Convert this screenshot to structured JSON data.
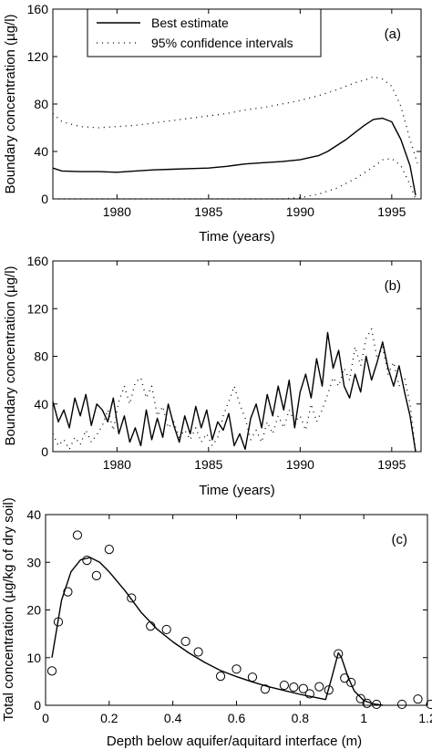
{
  "chart_data": [
    {
      "type": "line",
      "panel_tag": "(a)",
      "xlabel": "Time (years)",
      "ylabel": "Boundary concentration (µg/l)",
      "xlim": [
        1976.5,
        1996.6
      ],
      "ylim": [
        0,
        160
      ],
      "xticks": [
        1980,
        1985,
        1990,
        1995
      ],
      "yticks": [
        0,
        40,
        80,
        120,
        160
      ],
      "grid": false,
      "legend": {
        "placement": "top-left"
      },
      "series": [
        {
          "name": "Best estimate",
          "style": "solid",
          "x": [
            1976.5,
            1977,
            1978,
            1979,
            1980,
            1981,
            1982,
            1983,
            1984,
            1985,
            1986,
            1987,
            1988,
            1989,
            1990,
            1991,
            1991.5,
            1992,
            1992.5,
            1993,
            1993.5,
            1994,
            1994.5,
            1995,
            1995.5,
            1996,
            1996.3
          ],
          "y": [
            26,
            23.5,
            23,
            23,
            22.5,
            23.5,
            24.5,
            25,
            25.5,
            26,
            27.5,
            29.5,
            30.5,
            31.5,
            33,
            36.5,
            40,
            45,
            50,
            56,
            62,
            67,
            68,
            65,
            50,
            28,
            3
          ]
        },
        {
          "name": "95% confidence intervals",
          "style": "dotted",
          "x": [
            1976.5,
            1977,
            1978,
            1979,
            1980,
            1981,
            1982,
            1983,
            1984,
            1985,
            1986,
            1987,
            1988,
            1989,
            1990,
            1991,
            1992,
            1993,
            1993.5,
            1994,
            1994.5,
            1995,
            1995.5,
            1996,
            1996.4
          ],
          "y": [
            72,
            65,
            61,
            60,
            61,
            62,
            64,
            66,
            68,
            70,
            72,
            75,
            77,
            80,
            83,
            87,
            92,
            98,
            100,
            103,
            101,
            95,
            78,
            50,
            30
          ]
        },
        {
          "name": "",
          "style": "dotted",
          "x": [
            1976.5,
            1977,
            1980,
            1984,
            1987,
            1989,
            1990,
            1991,
            1992,
            1993,
            1994,
            1994.5,
            1995,
            1995.5,
            1996,
            1996.3
          ],
          "y": [
            0,
            0,
            0,
            0,
            0,
            0,
            1,
            4,
            9,
            17,
            27,
            33,
            34,
            28,
            12,
            0
          ]
        }
      ]
    },
    {
      "type": "line",
      "panel_tag": "(b)",
      "xlabel": "Time (years)",
      "ylabel": "Boundary concentration (µg/l)",
      "xlim": [
        1976.5,
        1996.6
      ],
      "ylim": [
        0,
        160
      ],
      "xticks": [
        1980,
        1985,
        1990,
        1995
      ],
      "yticks": [
        0,
        40,
        80,
        120,
        160
      ],
      "grid": false,
      "series": [
        {
          "name": "",
          "style": "solid",
          "x": [
            1976.5,
            1976.8,
            1977.1,
            1977.4,
            1977.7,
            1978,
            1978.3,
            1978.6,
            1978.9,
            1979.2,
            1979.5,
            1979.8,
            1980.1,
            1980.4,
            1980.7,
            1981,
            1981.3,
            1981.6,
            1981.9,
            1982.2,
            1982.5,
            1982.8,
            1983.1,
            1983.4,
            1983.7,
            1984,
            1984.3,
            1984.6,
            1984.9,
            1985.2,
            1985.5,
            1985.8,
            1986.1,
            1986.4,
            1986.7,
            1987,
            1987.3,
            1987.6,
            1987.9,
            1988.2,
            1988.5,
            1988.8,
            1989.1,
            1989.4,
            1989.7,
            1990,
            1990.3,
            1990.6,
            1990.9,
            1991.2,
            1991.5,
            1991.8,
            1992.1,
            1992.4,
            1992.7,
            1993,
            1993.3,
            1993.6,
            1993.9,
            1994.2,
            1994.5,
            1994.8,
            1995.1,
            1995.4,
            1995.7,
            1996,
            1996.3
          ],
          "y": [
            42,
            25,
            35,
            20,
            45,
            30,
            48,
            22,
            40,
            35,
            25,
            45,
            15,
            30,
            8,
            20,
            5,
            35,
            10,
            28,
            12,
            40,
            22,
            8,
            30,
            15,
            38,
            20,
            35,
            10,
            25,
            18,
            32,
            5,
            15,
            2,
            28,
            40,
            20,
            48,
            30,
            55,
            35,
            60,
            20,
            50,
            65,
            45,
            78,
            55,
            100,
            70,
            85,
            55,
            45,
            65,
            50,
            80,
            60,
            75,
            92,
            70,
            55,
            72,
            50,
            30,
            0
          ]
        },
        {
          "name": "",
          "style": "dotted",
          "x": [
            1976.5,
            1976.8,
            1977.1,
            1977.4,
            1977.7,
            1978,
            1978.3,
            1978.6,
            1978.9,
            1979.2,
            1979.5,
            1979.8,
            1980.1,
            1980.4,
            1980.7,
            1981,
            1981.3,
            1981.6,
            1981.9,
            1982.2,
            1982.5,
            1982.8,
            1983.1,
            1983.4,
            1983.7,
            1984,
            1984.3,
            1984.6,
            1984.9,
            1985.2,
            1985.5,
            1985.8,
            1986.1,
            1986.4,
            1986.7,
            1987,
            1987.3,
            1987.6,
            1987.9,
            1988.2,
            1988.5,
            1988.8,
            1989.1,
            1989.4,
            1989.7,
            1990,
            1990.3,
            1990.6,
            1990.9,
            1991.2,
            1991.5,
            1991.8,
            1992.1,
            1992.4,
            1992.7,
            1993,
            1993.3,
            1993.6,
            1993.9,
            1994.2,
            1994.5,
            1994.8,
            1995.1,
            1995.4,
            1995.7,
            1996,
            1996.3
          ],
          "y": [
            15,
            5,
            10,
            2,
            12,
            6,
            18,
            8,
            14,
            22,
            35,
            18,
            42,
            55,
            40,
            58,
            62,
            45,
            55,
            30,
            38,
            20,
            25,
            12,
            18,
            10,
            20,
            8,
            15,
            5,
            12,
            30,
            42,
            55,
            40,
            28,
            10,
            18,
            8,
            25,
            15,
            30,
            20,
            35,
            25,
            30,
            18,
            40,
            25,
            35,
            48,
            62,
            55,
            70,
            60,
            88,
            72,
            95,
            103,
            78,
            88,
            65,
            75,
            55,
            62,
            40,
            0
          ]
        }
      ]
    },
    {
      "type": "scatter",
      "panel_tag": "(c)",
      "xlabel": "Depth below aquifer/aquitard interface (m)",
      "ylabel": "Total concentration (µg/kg of dry soil)",
      "xlim": [
        0,
        1.2
      ],
      "ylim": [
        0,
        40
      ],
      "xticks": [
        0,
        0.2,
        0.4,
        0.6,
        0.8,
        1,
        1.2
      ],
      "yticks": [
        0,
        10,
        20,
        30,
        40
      ],
      "xtick_labels": [
        "0",
        "0.2",
        "0.4",
        "0.6",
        "0.8",
        "1",
        "1.2"
      ],
      "grid": false,
      "series": [
        {
          "name": "",
          "style": "circles",
          "x": [
            0.02,
            0.04,
            0.07,
            0.1,
            0.13,
            0.16,
            0.2,
            0.27,
            0.33,
            0.38,
            0.44,
            0.48,
            0.55,
            0.6,
            0.65,
            0.69,
            0.75,
            0.78,
            0.81,
            0.83,
            0.86,
            0.89,
            0.92,
            0.94,
            0.96,
            0.99,
            1.01,
            1.04,
            1.12,
            1.17,
            1.21
          ],
          "y": [
            7.2,
            17.5,
            23.8,
            35.7,
            30.4,
            27.2,
            32.7,
            22.5,
            16.6,
            15.9,
            13.4,
            11.2,
            6.1,
            7.6,
            5.9,
            3.4,
            4.2,
            3.8,
            3.5,
            2.4,
            3.9,
            3.2,
            10.8,
            5.7,
            4.8,
            1.4,
            0.4,
            0.2,
            0.2,
            1.3,
            0.2
          ]
        },
        {
          "name": "",
          "style": "solid",
          "x": [
            0.02,
            0.05,
            0.08,
            0.11,
            0.14,
            0.17,
            0.2,
            0.25,
            0.3,
            0.35,
            0.4,
            0.45,
            0.5,
            0.55,
            0.6,
            0.65,
            0.7,
            0.75,
            0.8,
            0.85,
            0.88,
            0.9,
            0.92,
            0.93,
            0.95,
            0.97,
            1.0,
            1.03,
            1.06
          ],
          "y": [
            10,
            22,
            28,
            30.5,
            31,
            30,
            28,
            24,
            19.5,
            16,
            13.3,
            11,
            9,
            7.3,
            6,
            4.9,
            3.9,
            3.1,
            2.3,
            1.6,
            1.2,
            6,
            11,
            10,
            6,
            3,
            1,
            0.3,
            0
          ]
        }
      ]
    }
  ]
}
